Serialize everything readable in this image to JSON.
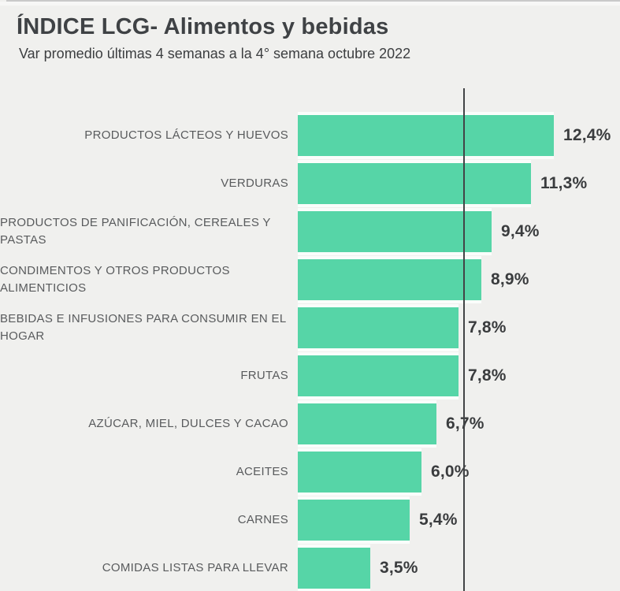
{
  "header": {
    "title": "ÍNDICE LCG- Alimentos y bebidas",
    "subtitle": "Var promedio últimas 4 semanas a la 4° semana octubre 2022"
  },
  "chart_data": {
    "type": "bar",
    "orientation": "horizontal",
    "title": "ÍNDICE LCG- Alimentos y bebidas",
    "subtitle": "Var promedio últimas 4 semanas a la 4° semana octubre 2022",
    "categories": [
      "PRODUCTOS LÁCTEOS Y HUEVOS",
      "VERDURAS",
      "PRODUCTOS DE PANIFICACIÓN, CEREALES Y PASTAS",
      "CONDIMENTOS Y OTROS PRODUCTOS ALIMENTICIOS",
      "BEBIDAS E INFUSIONES PARA CONSUMIR EN EL HOGAR",
      "FRUTAS",
      "AZÚCAR, MIEL, DULCES Y CACAO",
      "ACEITES",
      "CARNES",
      "COMIDAS LISTAS PARA LLEVAR"
    ],
    "values": [
      12.4,
      11.3,
      9.4,
      8.9,
      7.8,
      7.8,
      6.7,
      6.0,
      5.4,
      3.5
    ],
    "value_labels": [
      "12,4%",
      "11,3%",
      "9,4%",
      "8,9%",
      "7,8%",
      "7,8%",
      "6,7%",
      "6,0%",
      "5,4%",
      "3,5%"
    ],
    "xlabel": "",
    "ylabel": "",
    "xlim": [
      0,
      15.5
    ],
    "reference_line_x": 8.0,
    "grid": false,
    "legend": false,
    "data_labels": true
  },
  "colors": {
    "background": "#f0f0ee",
    "bar": "#56d5a7",
    "title_text": "#3f4245",
    "label_text": "#595b5d",
    "value_text": "#3a3c3e",
    "reference_line": "#424446"
  }
}
